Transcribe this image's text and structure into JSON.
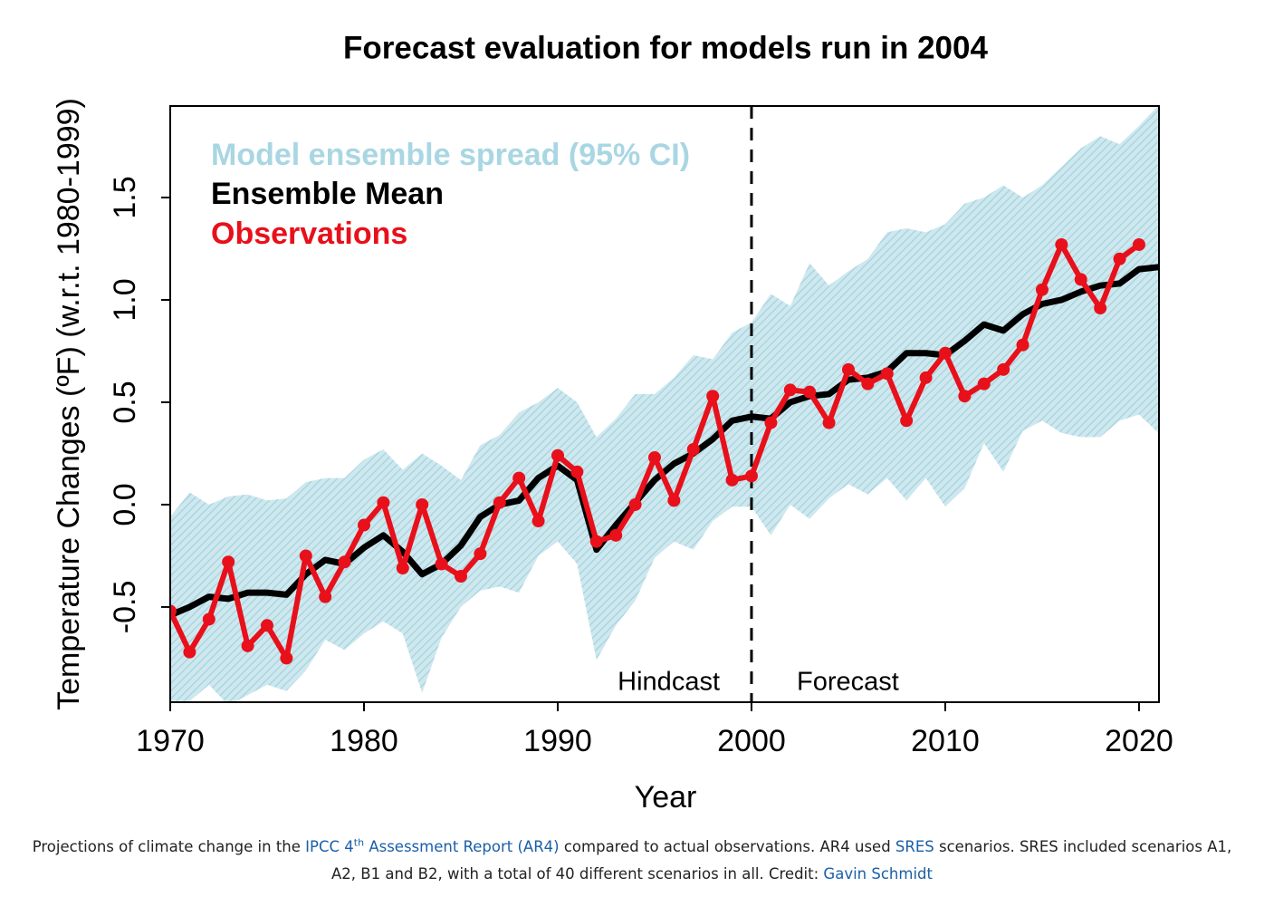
{
  "chart_data": {
    "type": "line",
    "title": "Forecast evaluation for models run in 2004",
    "xlabel": "Year",
    "ylabel": "Temperature Changes (ºF) (w.r.t. 1980-1999)",
    "xlim": [
      1970,
      2021.03
    ],
    "ylim": [
      -0.965,
      1.947
    ],
    "xticks": [
      1970,
      1980,
      1990,
      2000,
      2010,
      2020
    ],
    "yticks": [
      -0.5,
      {
        "value": 0,
        "label": "0.0"
      },
      0.5,
      {
        "value": 1,
        "label": "1.0"
      },
      1.5
    ],
    "x": [
      1970,
      1971,
      1972,
      1973,
      1974,
      1975,
      1976,
      1977,
      1978,
      1979,
      1980,
      1981,
      1982,
      1983,
      1984,
      1985,
      1986,
      1987,
      1988,
      1989,
      1990,
      1991,
      1992,
      1993,
      1994,
      1995,
      1996,
      1997,
      1998,
      1999,
      2000,
      2001,
      2002,
      2003,
      2004,
      2005,
      2006,
      2007,
      2008,
      2009,
      2010,
      2011,
      2012,
      2013,
      2014,
      2015,
      2016,
      2017,
      2018,
      2019,
      2020,
      2021
    ],
    "band": {
      "name": "Model ensemble spread (95% CI)",
      "color": "#a9d6e3",
      "upper": [
        -0.06,
        0.06,
        0,
        0.04,
        0.05,
        0.02,
        0.03,
        0.11,
        0.13,
        0.13,
        0.22,
        0.27,
        0.17,
        0.25,
        0.19,
        0.12,
        0.29,
        0.34,
        0.45,
        0.5,
        0.57,
        0.5,
        0.33,
        0.42,
        0.54,
        0.54,
        0.62,
        0.73,
        0.71,
        0.84,
        0.89,
        1.03,
        0.97,
        1.18,
        1.07,
        1.14,
        1.2,
        1.33,
        1.35,
        1.33,
        1.37,
        1.47,
        1.5,
        1.56,
        1.5,
        1.56,
        1.65,
        1.74,
        1.8,
        1.76,
        1.85,
        1.95
      ],
      "lower": [
        -0.96,
        -0.96,
        -0.88,
        -0.98,
        -0.93,
        -0.88,
        -0.91,
        -0.81,
        -0.66,
        -0.71,
        -0.63,
        -0.57,
        -0.63,
        -0.92,
        -0.65,
        -0.5,
        -0.42,
        -0.4,
        -0.43,
        -0.25,
        -0.18,
        -0.29,
        -0.76,
        -0.59,
        -0.47,
        -0.26,
        -0.18,
        -0.22,
        -0.08,
        -0.01,
        -0.01,
        -0.15,
        0,
        -0.07,
        0.03,
        0.1,
        0.05,
        0.13,
        0.02,
        0.13,
        -0.01,
        0.08,
        0.3,
        0.16,
        0.36,
        0.41,
        0.35,
        0.33,
        0.33,
        0.41,
        0.44,
        0.35
      ]
    },
    "series": [
      {
        "name": "Ensemble Mean",
        "color": "#000000",
        "markers": false,
        "values": [
          -0.54,
          -0.5,
          -0.45,
          -0.46,
          -0.43,
          -0.43,
          -0.44,
          -0.34,
          -0.27,
          -0.29,
          -0.21,
          -0.15,
          -0.23,
          -0.34,
          -0.29,
          -0.2,
          -0.06,
          0,
          0.02,
          0.13,
          0.19,
          0.12,
          -0.22,
          -0.1,
          0.01,
          0.12,
          0.2,
          0.25,
          0.32,
          0.41,
          0.43,
          0.42,
          0.5,
          0.53,
          0.54,
          0.61,
          0.62,
          0.65,
          0.74,
          0.74,
          0.73,
          0.8,
          0.88,
          0.85,
          0.93,
          0.98,
          1,
          1.04,
          1.07,
          1.08,
          1.15,
          1.16
        ]
      },
      {
        "name": "Observations",
        "color": "#e8101a",
        "markers": true,
        "values": [
          -0.52,
          -0.72,
          -0.56,
          -0.28,
          -0.69,
          -0.59,
          -0.75,
          -0.25,
          -0.45,
          -0.28,
          -0.1,
          0.01,
          -0.31,
          0,
          -0.29,
          -0.35,
          -0.24,
          0.01,
          0.13,
          -0.08,
          0.24,
          0.16,
          -0.18,
          -0.15,
          0,
          0.23,
          0.02,
          0.27,
          0.53,
          0.12,
          0.14,
          0.4,
          0.56,
          0.55,
          0.4,
          0.66,
          0.59,
          0.64,
          0.41,
          0.62,
          0.74,
          0.53,
          0.59,
          0.66,
          0.78,
          1.05,
          1.27,
          1.1,
          0.96,
          1.2,
          1.27,
          null
        ]
      }
    ],
    "vline": 2000,
    "annotations": [
      "Hindcast",
      "Forecast"
    ]
  },
  "caption": {
    "parts": [
      {
        "text": "Projections of climate change in the ",
        "style": "plain"
      },
      {
        "text": "IPCC 4",
        "style": "link"
      },
      {
        "text": "th",
        "style": "link-sup"
      },
      {
        "text": " Assessment Report (AR4)",
        "style": "link"
      },
      {
        "text": " compared to actual observations. AR4 used ",
        "style": "plain"
      },
      {
        "text": "SRES",
        "style": "link"
      },
      {
        "text": " scenarios. SRES included scenarios A1, A2, B1 and B2, with a total of 40 different scenarios in all. Credit: ",
        "style": "plain"
      },
      {
        "text": "Gavin Schmidt",
        "style": "link"
      }
    ]
  }
}
